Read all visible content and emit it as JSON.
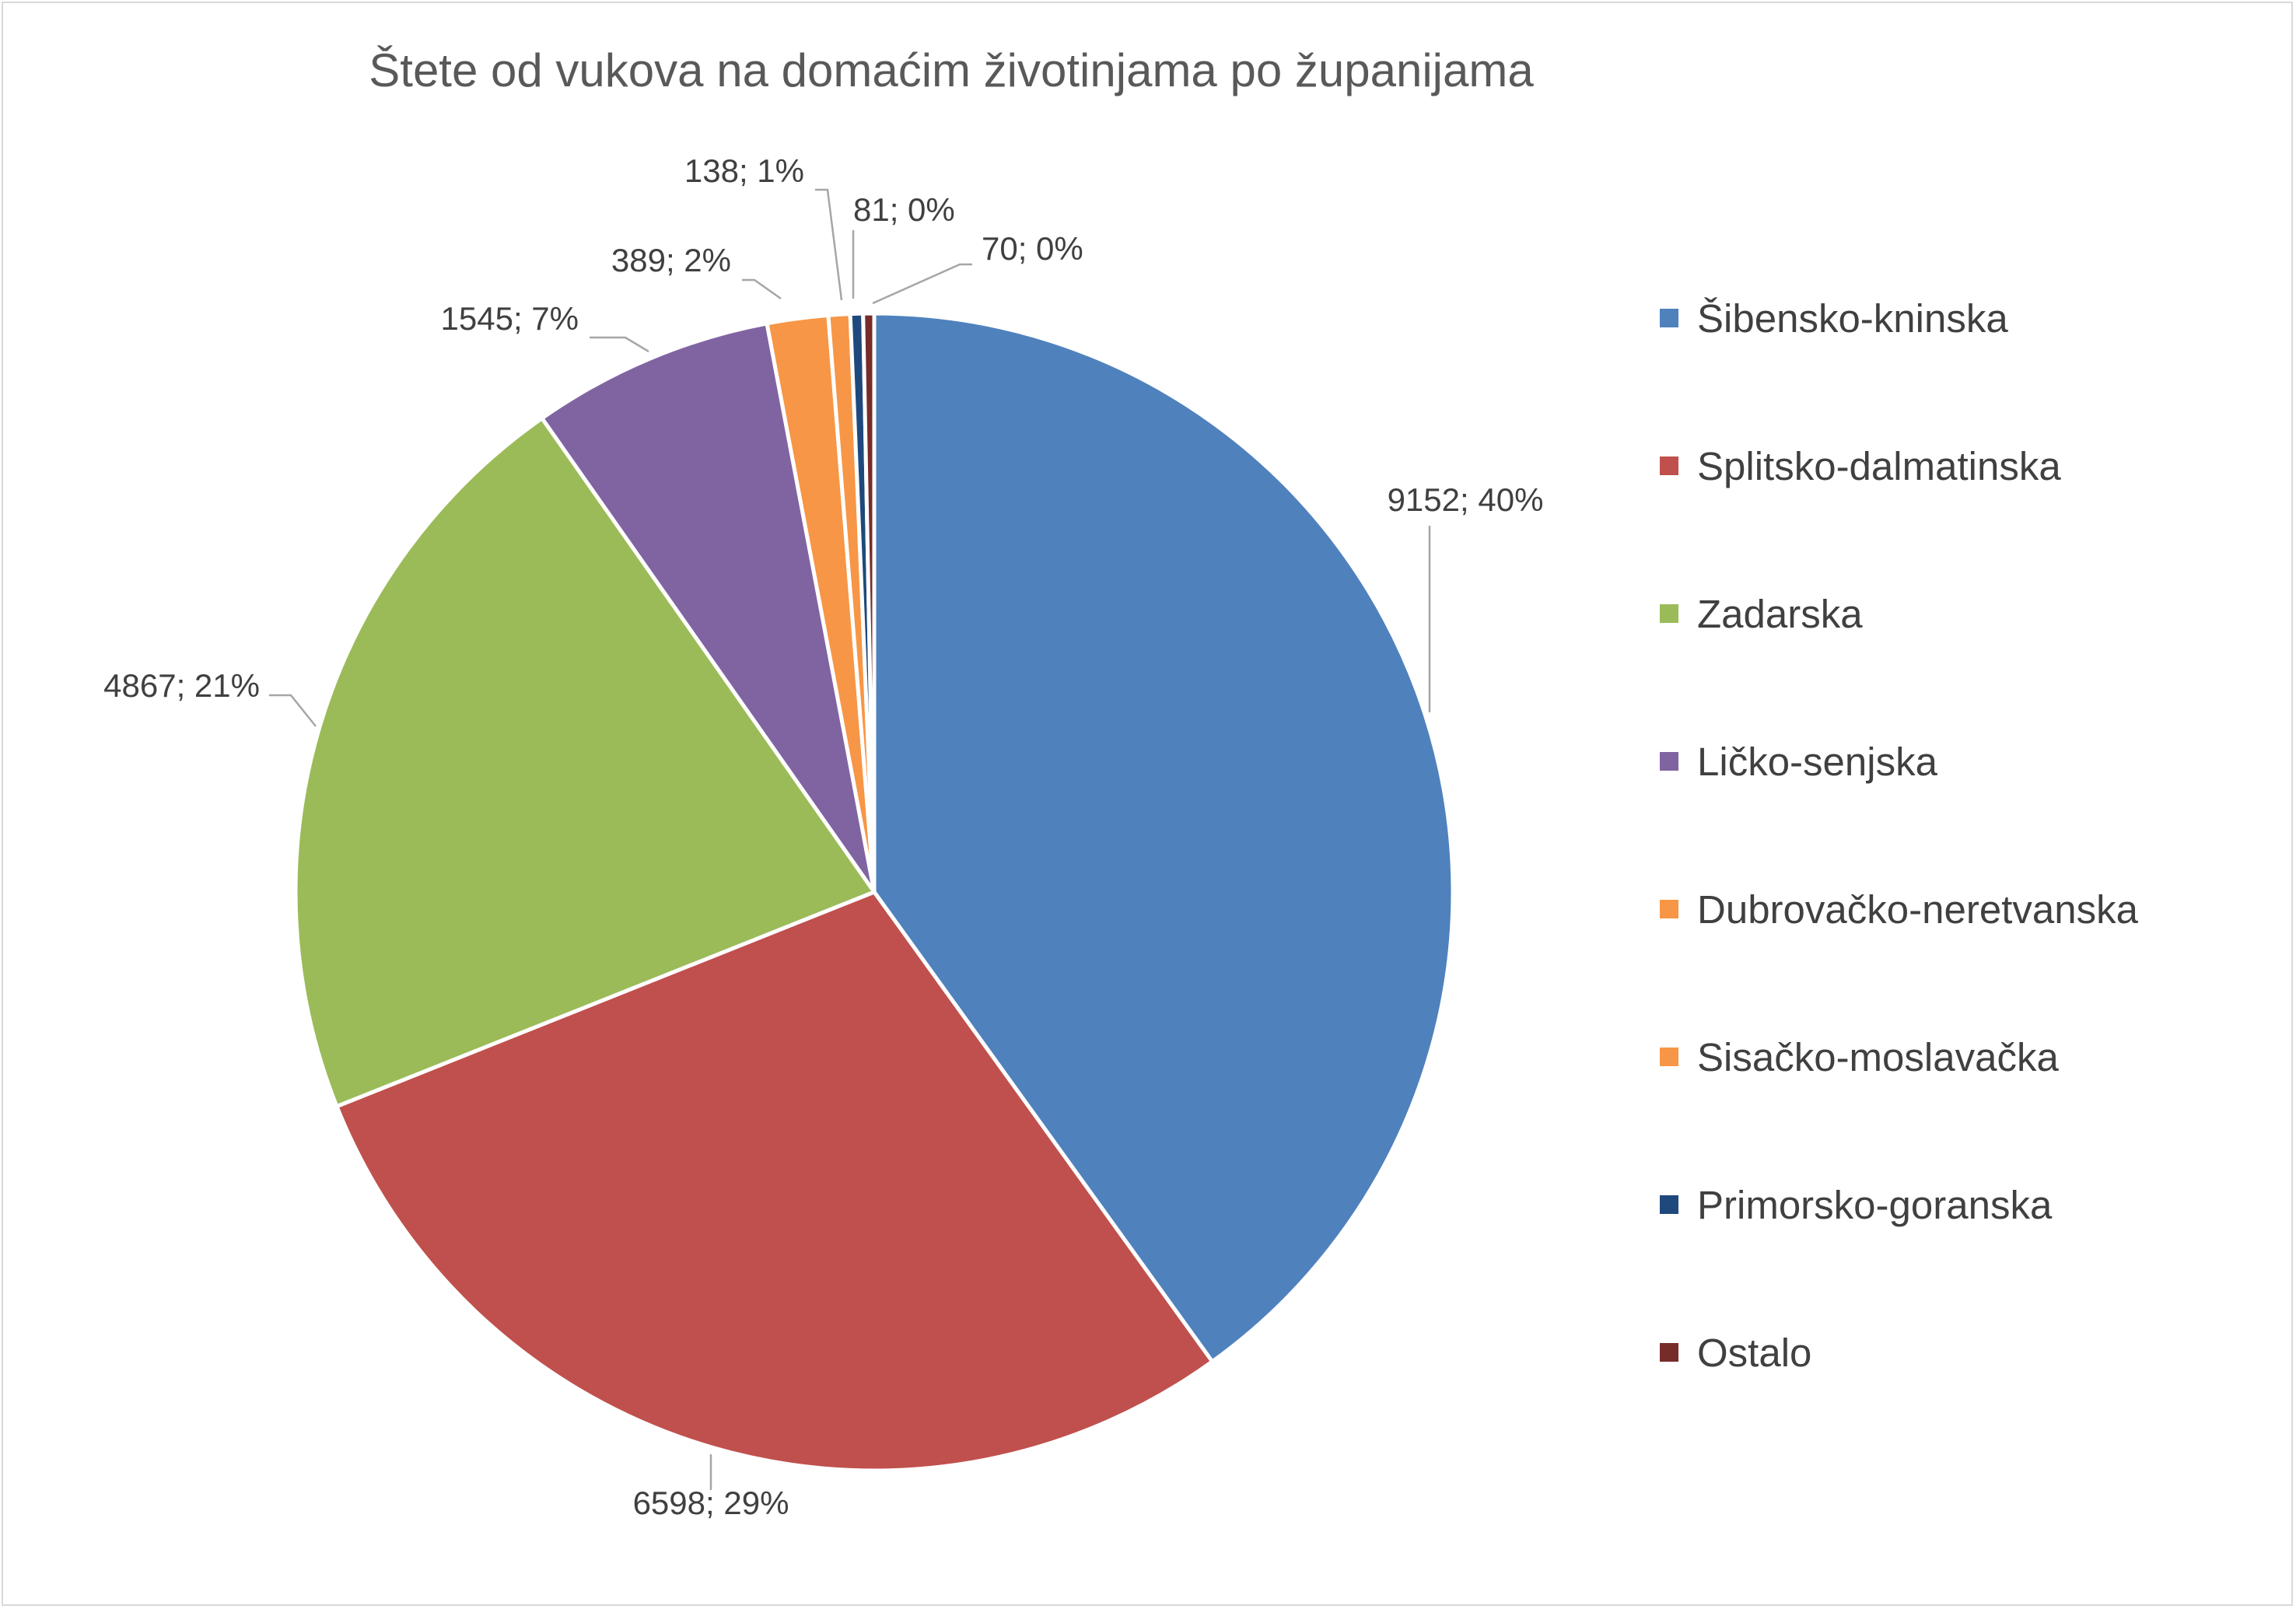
{
  "chart_data": {
    "type": "pie",
    "title": "Štete od vukova na domaćim životinjama po županijama",
    "series": [
      {
        "name": "Šibensko-kninska",
        "value": 9152,
        "label": "9152; 40%",
        "color": "#4f81bd"
      },
      {
        "name": "Splitsko-dalmatinska",
        "value": 6598,
        "label": "6598; 29%",
        "color": "#c0504d"
      },
      {
        "name": "Zadarska",
        "value": 4867,
        "label": "4867; 21%",
        "color": "#9bbb59"
      },
      {
        "name": "Ličko-senjska",
        "value": 1545,
        "label": "1545; 7%",
        "color": "#8064a2"
      },
      {
        "name": "Dubrovačko-neretvanska",
        "value": 389,
        "label": "389; 2%",
        "color": "#f79646"
      },
      {
        "name": "Sisačko-moslavačka",
        "value": 138,
        "label": "138; 1%",
        "color": "#f79646"
      },
      {
        "name": "Primorsko-goranska",
        "value": 81,
        "label": "81; 0%",
        "color": "#1f497d"
      },
      {
        "name": "Ostalo",
        "value": 70,
        "label": "70; 0%",
        "color": "#772c2a"
      }
    ],
    "start_angle": "12 o'clock, clockwise",
    "legend_position": "right"
  }
}
